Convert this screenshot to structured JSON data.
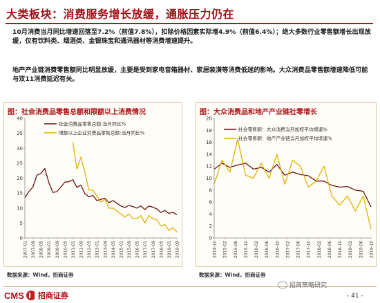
{
  "title": "大类板块：消费服务增长放缓，通胀压力仍在",
  "paragraph1": "10月消费当月同比增速回落至7.2%（前值7.8%），扣除价格因素实际增4.9%（前值6.4%）；绝大多数行业零售额增长出现放缓，仅有饮料类、烟酒类、金银珠宝和通讯器材等消费增速提升。",
  "paragraph2": "地产产业链消费零售额同比明显放缓，主要是受到家电音箱器材、家居装潢等消费低迷的影响。大众消费品零售额增速降低可能与双11消费延迟有关。",
  "colors": {
    "accent": "#b01218",
    "series_dark": "#6b0f12",
    "series_gold": "#e3b100"
  },
  "chart_data": [
    {
      "type": "line",
      "title": "图：社会消费品零售总额和限额以上消费情况",
      "x": [
        "2007-01",
        "2007-05",
        "2007-09",
        "2008-01",
        "2008-05",
        "2008-09",
        "2009-01",
        "2009-05",
        "2009-09",
        "2010-01",
        "2010-05",
        "2010-09",
        "2011-01",
        "2011-05",
        "2011-09",
        "2012-01",
        "2012-05",
        "2012-09",
        "2013-01",
        "2013-05",
        "2013-09",
        "2014-01",
        "2014-05",
        "2014-09",
        "2015-01",
        "2015-05",
        "2015-09",
        "2016-01",
        "2016-05",
        "2016-09",
        "2017-01",
        "2017-05",
        "2017-09",
        "2018-01",
        "2018-05",
        "2018-09",
        "2019-01",
        "2019-05",
        "2019-09"
      ],
      "xticks": [
        "2007-01",
        "2007-09",
        "2008-05",
        "2009-01",
        "2009-09",
        "2010-05",
        "2011-01",
        "2011-09",
        "2012-05",
        "2013-01",
        "2013-09",
        "2014-05",
        "2015-01",
        "2015-09",
        "2016-05",
        "2017-01",
        "2017-09",
        "2018-05",
        "2019-01",
        "2019-09"
      ],
      "ylim": [
        0,
        40
      ],
      "yticks": [
        0,
        5,
        10,
        15,
        20,
        25,
        30,
        35,
        40
      ],
      "legend_position": "top-left",
      "series": [
        {
          "name": "社会消费品零售总额:当月同比%",
          "color": "#6b0f12",
          "values": [
            13.5,
            15.5,
            17,
            21,
            21.6,
            23.2,
            18.5,
            15.2,
            15.5,
            17,
            18.7,
            18.8,
            19.5,
            16.9,
            17.7,
            14.8,
            13.8,
            14.2,
            12.5,
            12.9,
            13.3,
            11.8,
            12.5,
            11.6,
            10.7,
            10.2,
            10.9,
            10.5,
            10,
            10.7,
            9.5,
            10.7,
            10.3,
            9.7,
            8.5,
            9.2,
            8.2,
            8.6,
            7.8
          ]
        },
        {
          "name": "限额以上企业消费品零售总额:当月同比%",
          "color": "#e3b100",
          "values": [
            null,
            null,
            null,
            null,
            null,
            null,
            null,
            null,
            null,
            null,
            null,
            null,
            32,
            23,
            27,
            22,
            16,
            16,
            14,
            12,
            13,
            10,
            10,
            9,
            8,
            7,
            8,
            6.5,
            6.5,
            7.5,
            5,
            7.5,
            6.5,
            6,
            4,
            4.5,
            2.5,
            3.5,
            2
          ]
        }
      ]
    },
    {
      "type": "line",
      "title": "图：大众消费品和地产产业链社零增长",
      "x": [
        "2014-10",
        "2015-01",
        "2015-04",
        "2015-07",
        "2015-10",
        "2016-01",
        "2016-04",
        "2016-07",
        "2016-10",
        "2017-01",
        "2017-04",
        "2017-07",
        "2017-10",
        "2018-01",
        "2018-04",
        "2018-07",
        "2018-10",
        "2019-01",
        "2019-04",
        "2019-07",
        "2019-10"
      ],
      "xticks": [
        "2014-10",
        "2015-02",
        "2015-06",
        "2015-10",
        "2016-02",
        "2016-06",
        "2016-10",
        "2017-02",
        "2017-06",
        "2017-10",
        "2018-02",
        "2018-06",
        "2018-10",
        "2019-02",
        "2019-06",
        "2019-10"
      ],
      "ylim": [
        0,
        20
      ],
      "yticks": [
        0,
        2,
        4,
        6,
        8,
        10,
        12,
        14,
        16,
        18,
        20
      ],
      "legend_position": "top-right",
      "series": [
        {
          "name": "社会零售额：大众消费当月加权平均增速%",
          "color": "#6b0f12",
          "values": [
            11.5,
            12.5,
            11.8,
            12.2,
            12.5,
            11.5,
            11.8,
            11,
            12.3,
            10.5,
            11,
            10.6,
            10.4,
            9.5,
            9.5,
            8.8,
            8.5,
            8.6,
            8,
            7.8,
            5.2
          ]
        },
        {
          "name": "社会零售额：地产产业链当月加权平均增速%",
          "color": "#e3b100",
          "values": [
            9,
            13,
            11,
            16.5,
            10.5,
            10,
            12.5,
            10,
            14,
            9,
            13,
            12,
            8.5,
            9.5,
            12,
            7,
            5.5,
            7,
            4.5,
            7,
            1.5
          ]
        }
      ]
    }
  ],
  "source_left": "数据来源：Wind，招商证券",
  "source_right": "数据来源：Wind，招商证券",
  "footer": {
    "logo_cms": "CMS",
    "logo_text": "招商证券",
    "watermark": "招商策略研究",
    "page": "- 41 -"
  }
}
